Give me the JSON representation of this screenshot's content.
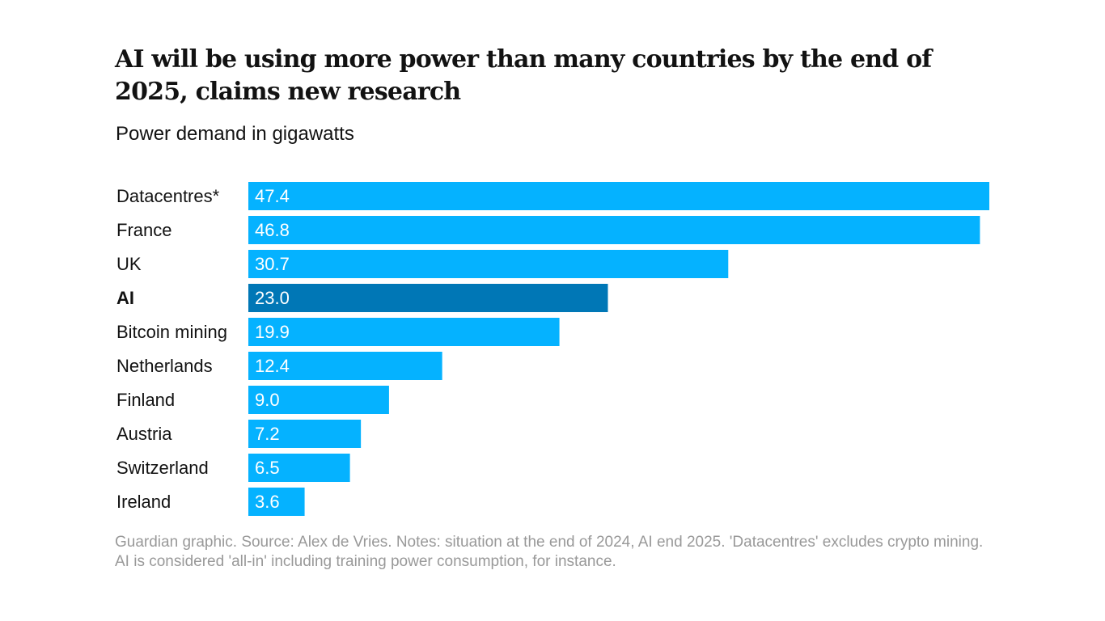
{
  "colors": {
    "bar": "#05b2ff",
    "highlight": "#0077b6",
    "label_text": "#121212",
    "value_text": "#ffffff"
  },
  "chart_data": {
    "type": "bar",
    "orientation": "horizontal",
    "title": "AI will be using more power than many countries by the end of 2025, claims new research",
    "subtitle": "Power demand in gigawatts",
    "categories": [
      "Datacentres*",
      "France",
      "UK",
      "AI",
      "Bitcoin mining",
      "Netherlands",
      "Finland",
      "Austria",
      "Switzerland",
      "Ireland"
    ],
    "values": [
      47.4,
      46.8,
      30.7,
      23.0,
      19.9,
      12.4,
      9.0,
      7.2,
      6.5,
      3.6
    ],
    "value_labels": [
      "47.4",
      "46.8",
      "30.7",
      "23.0",
      "19.9",
      "12.4",
      "9.0",
      "7.2",
      "6.5",
      "3.6"
    ],
    "highlight": "AI",
    "xlim": [
      0,
      47.4
    ],
    "grid": false,
    "legend": "none"
  },
  "footnote": "Guardian graphic. Source: Alex de Vries. Notes: situation at the end of 2024, AI end 2025. 'Datacentres' excludes crypto mining. AI is considered 'all-in' including training power consumption, for instance."
}
